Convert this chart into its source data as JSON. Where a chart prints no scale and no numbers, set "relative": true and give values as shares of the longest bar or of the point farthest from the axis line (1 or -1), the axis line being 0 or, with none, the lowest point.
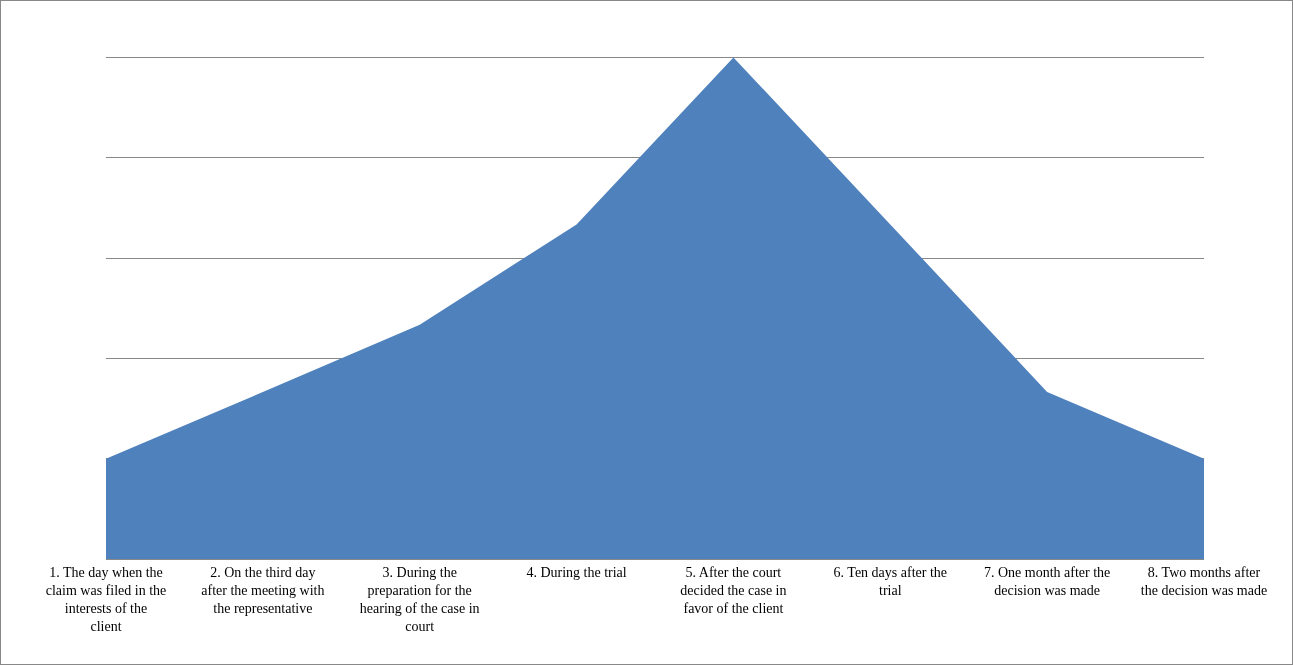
{
  "chart_data": {
    "type": "area",
    "relative": true,
    "grid": "y",
    "categories": [
      "1. The day when the claim was filed in the interests of the client",
      "2. On the third day after the meeting with the representative",
      "3. During the preparation for the hearing of the case in court",
      "4. During the trial",
      "5. After the court decided the case in favor of the client",
      "6. Ten days after the trial",
      "7. One month after the decision was made",
      "8. Two months after the decision was made"
    ],
    "series": [
      {
        "color": "#4f81bd",
        "values": [
          0.2,
          0.333,
          0.467,
          0.667,
          1,
          0.667,
          0.333,
          0.2
        ]
      }
    ]
  }
}
